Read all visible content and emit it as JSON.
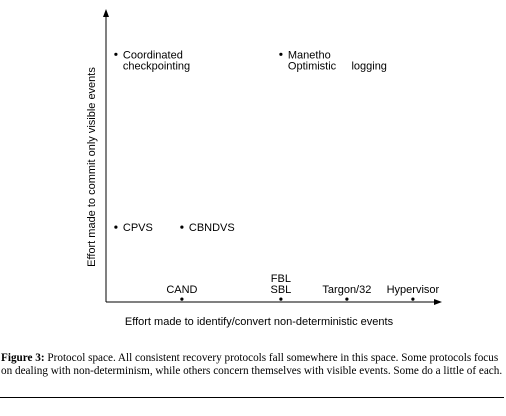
{
  "figure": {
    "xlabel": "Effort made to identify/convert non-deterministic events",
    "ylabel": "Effort made to commit only visible events"
  },
  "chart_data": {
    "type": "scatter",
    "xlabel": "Effort made to identify/convert non-deterministic events",
    "ylabel": "Effort made to commit only visible events",
    "xlim": [
      0,
      10
    ],
    "ylim": [
      0,
      10
    ],
    "grid": false,
    "points": [
      {
        "x": 0.3,
        "y": 8.6,
        "lines": [
          "Coordinated",
          "checkpointing"
        ]
      },
      {
        "x": 5.3,
        "y": 8.6,
        "lines": [
          "Manetho",
          "Optimistic     logging"
        ]
      },
      {
        "x": 0.3,
        "y": 2.6,
        "lines": [
          "CPVS"
        ]
      },
      {
        "x": 2.3,
        "y": 2.6,
        "lines": [
          "CBNDVS"
        ]
      },
      {
        "x": 2.3,
        "y": 0.1,
        "lines": [
          "CAND"
        ]
      },
      {
        "x": 5.3,
        "y": 0.1,
        "lines": [
          "FBL",
          "SBL"
        ]
      },
      {
        "x": 7.3,
        "y": 0.1,
        "lines": [
          "Targon/32"
        ]
      },
      {
        "x": 9.3,
        "y": 0.1,
        "lines": [
          "Hypervisor"
        ]
      }
    ]
  },
  "caption": {
    "label": "Figure 3:",
    "text": "Protocol space. All consistent recovery protocols fall somewhere in this space. Some protocols focus on dealing with non-determinism, while others concern themselves with visible events. Some do a little of each."
  }
}
